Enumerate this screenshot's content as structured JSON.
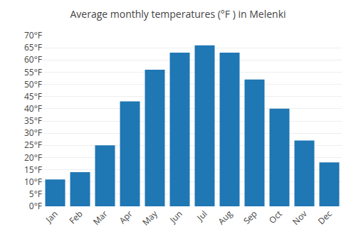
{
  "chart_data": {
    "type": "bar",
    "title": "Average monthly temperatures (°F ) in Melenki",
    "categories": [
      "Jan",
      "Feb",
      "Mar",
      "Apr",
      "May",
      "Jun",
      "Jul",
      "Aug",
      "Sep",
      "Oct",
      "Nov",
      "Dec"
    ],
    "values": [
      11,
      14,
      25,
      43,
      56,
      63,
      66,
      63,
      52,
      40,
      27,
      18
    ],
    "ylim": [
      0,
      70
    ],
    "yticks": [
      {
        "value": 0,
        "label": "0°F"
      },
      {
        "value": 5,
        "label": "5°F"
      },
      {
        "value": 10,
        "label": "10°F"
      },
      {
        "value": 15,
        "label": "15°F"
      },
      {
        "value": 20,
        "label": "20°F"
      },
      {
        "value": 25,
        "label": "25°F"
      },
      {
        "value": 30,
        "label": "30°F"
      },
      {
        "value": 35,
        "label": "35°F"
      },
      {
        "value": 40,
        "label": "40°F"
      },
      {
        "value": 45,
        "label": "45°F"
      },
      {
        "value": 50,
        "label": "50°F"
      },
      {
        "value": 55,
        "label": "55°F"
      },
      {
        "value": 60,
        "label": "60°F"
      },
      {
        "value": 65,
        "label": "65°F"
      },
      {
        "value": 70,
        "label": "70°F"
      }
    ],
    "grid": true
  }
}
